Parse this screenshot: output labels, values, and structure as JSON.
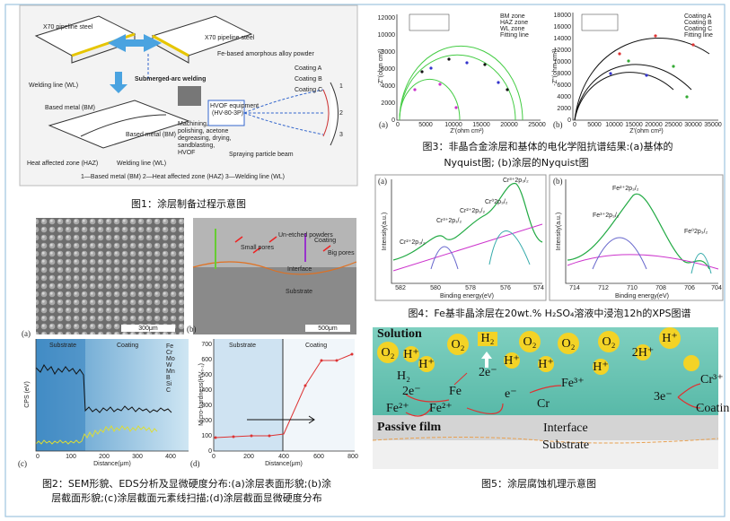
{
  "fig1": {
    "caption": "图1：涂层制备过程示意图",
    "labels": [
      "X70 pipeline steel",
      "X70 pipeline steel",
      "Fe-based amorphous alloy powder",
      "Submerged-arc welding",
      "Welding line (WL)",
      "Based metal (BM)",
      "Based metal (BM)",
      "HVOF equipment",
      "(HV-80-3P)",
      "Machining,",
      "polishing, acetone",
      "degreasing, drying,",
      "sandblasting,",
      "HVOF",
      "Coating A",
      "Coating B",
      "Coating C",
      "Spraying particle beam",
      "Heat affected zone (HAZ)",
      "Welding line (WL)",
      "1—Based metal (BM)    2—Heat affected zone (HAZ)    3—Welding line (WL)",
      "1",
      "2",
      "3"
    ]
  },
  "fig3": {
    "caption": [
      "图3：非晶合金涂层和基体的电化学阻抗谱结果:(a)基体的",
      "Nyquist图; (b)涂层的Nyquist图"
    ],
    "a": {
      "tag": "(a)",
      "legend": [
        "BM zone",
        "HAZ zone",
        "WL zone",
        "Fitting line"
      ],
      "xlabel": "Z'(ohm cm²)",
      "ylabel": "-Z''(ohm cm²)",
      "xticks": [
        "0",
        "5000",
        "10000",
        "15000",
        "20000",
        "25000"
      ],
      "yticks": [
        "0",
        "2000",
        "4000",
        "6000",
        "8000",
        "10000",
        "12000"
      ]
    },
    "b": {
      "tag": "(b)",
      "legend": [
        "Coating A",
        "Coating B",
        "Coating C",
        "Fitting line"
      ],
      "xlabel": "Z'(ohm cm²)",
      "ylabel": "-Z''(ohm cm²)",
      "xticks": [
        "0",
        "5000",
        "10000",
        "15000",
        "20000",
        "25000",
        "30000",
        "35000"
      ],
      "yticks": [
        "0",
        "2000",
        "4000",
        "6000",
        "8000",
        "10000",
        "12000",
        "14000",
        "16000",
        "18000"
      ]
    }
  },
  "fig4": {
    "caption": "图4：Fe基非晶涂层在20wt.% H₂SO₄溶液中浸泡12h的XPS图谱",
    "a": {
      "tag": "(a)",
      "peaks": [
        "Cr²⁺2p₃/₂",
        "Cr³⁺2p₁/₂",
        "Cr²⁺2p₁/₂",
        "Cr⁰2p₃/₂",
        "Cr³⁺2p₃/₂"
      ],
      "xlabel": "Binding energy(eV)",
      "ylabel": "Intensity(a.u.)",
      "xticks": [
        "582",
        "580",
        "578",
        "576",
        "574"
      ]
    },
    "b": {
      "tag": "(b)",
      "peaks": [
        "Fe²⁺2p₃/₂",
        "Fe³⁺2p₃/₂",
        "Fe⁰2p₃/₂"
      ],
      "xlabel": "Binding energy(eV)",
      "ylabel": "Intensity(a.u.)",
      "xticks": [
        "714",
        "712",
        "710",
        "708",
        "706",
        "704"
      ]
    }
  },
  "fig2": {
    "caption": [
      "图2：SEM形貌、EDS分析及显微硬度分布:(a)涂层表面形貌;(b)涂",
      "层截面形貌;(c)涂层截面元素线扫描;(d)涂层截面显微硬度分布"
    ],
    "a": {
      "tag": "(a)",
      "scale": "300μm"
    },
    "b": {
      "tag": "(b)",
      "labels": [
        "Un-etched powders",
        "Small pores",
        "Big pores",
        "Coating",
        "Interface",
        "Substrate"
      ],
      "scale": "500μm"
    },
    "c": {
      "tag": "(c)",
      "zones": [
        "Substrate",
        "Coating"
      ],
      "ylabel": "CPS (eV)",
      "xlabel": "Distance(μm)",
      "xticks": [
        "0",
        "100",
        "200",
        "300",
        "400"
      ],
      "legend": [
        "Fe",
        "Cr",
        "Mo",
        "W",
        "Mn",
        "B",
        "Si",
        "C"
      ]
    },
    "d": {
      "tag": "(d)",
      "zones": [
        "Substrate",
        "Coating"
      ],
      "ylabel": "Micro-hardness(HV₀.₁)",
      "xlabel": "Distance(μm)",
      "xticks": [
        "0",
        "200",
        "400",
        "600",
        "800"
      ],
      "yticks": [
        "0",
        "100",
        "200",
        "300",
        "400",
        "500",
        "600",
        "700"
      ]
    }
  },
  "fig5": {
    "caption": "图5：涂层腐蚀机理示意图",
    "labels": [
      "Solution",
      "O₂",
      "H⁺",
      "H₂",
      "O₂",
      "O₂",
      "O₂",
      "O₂",
      "H⁺",
      "H⁺",
      "H⁺",
      "H⁺",
      "H⁺",
      "2H⁺",
      "H₂",
      "2e⁻",
      "2e⁻",
      "Fe",
      "Fe²⁺",
      "Fe²⁺",
      "e⁻",
      "Fe³⁺",
      "Cr",
      "3e⁻",
      "Cr³⁺",
      "Coating",
      "Passive film",
      "Interface",
      "Substrate"
    ]
  }
}
